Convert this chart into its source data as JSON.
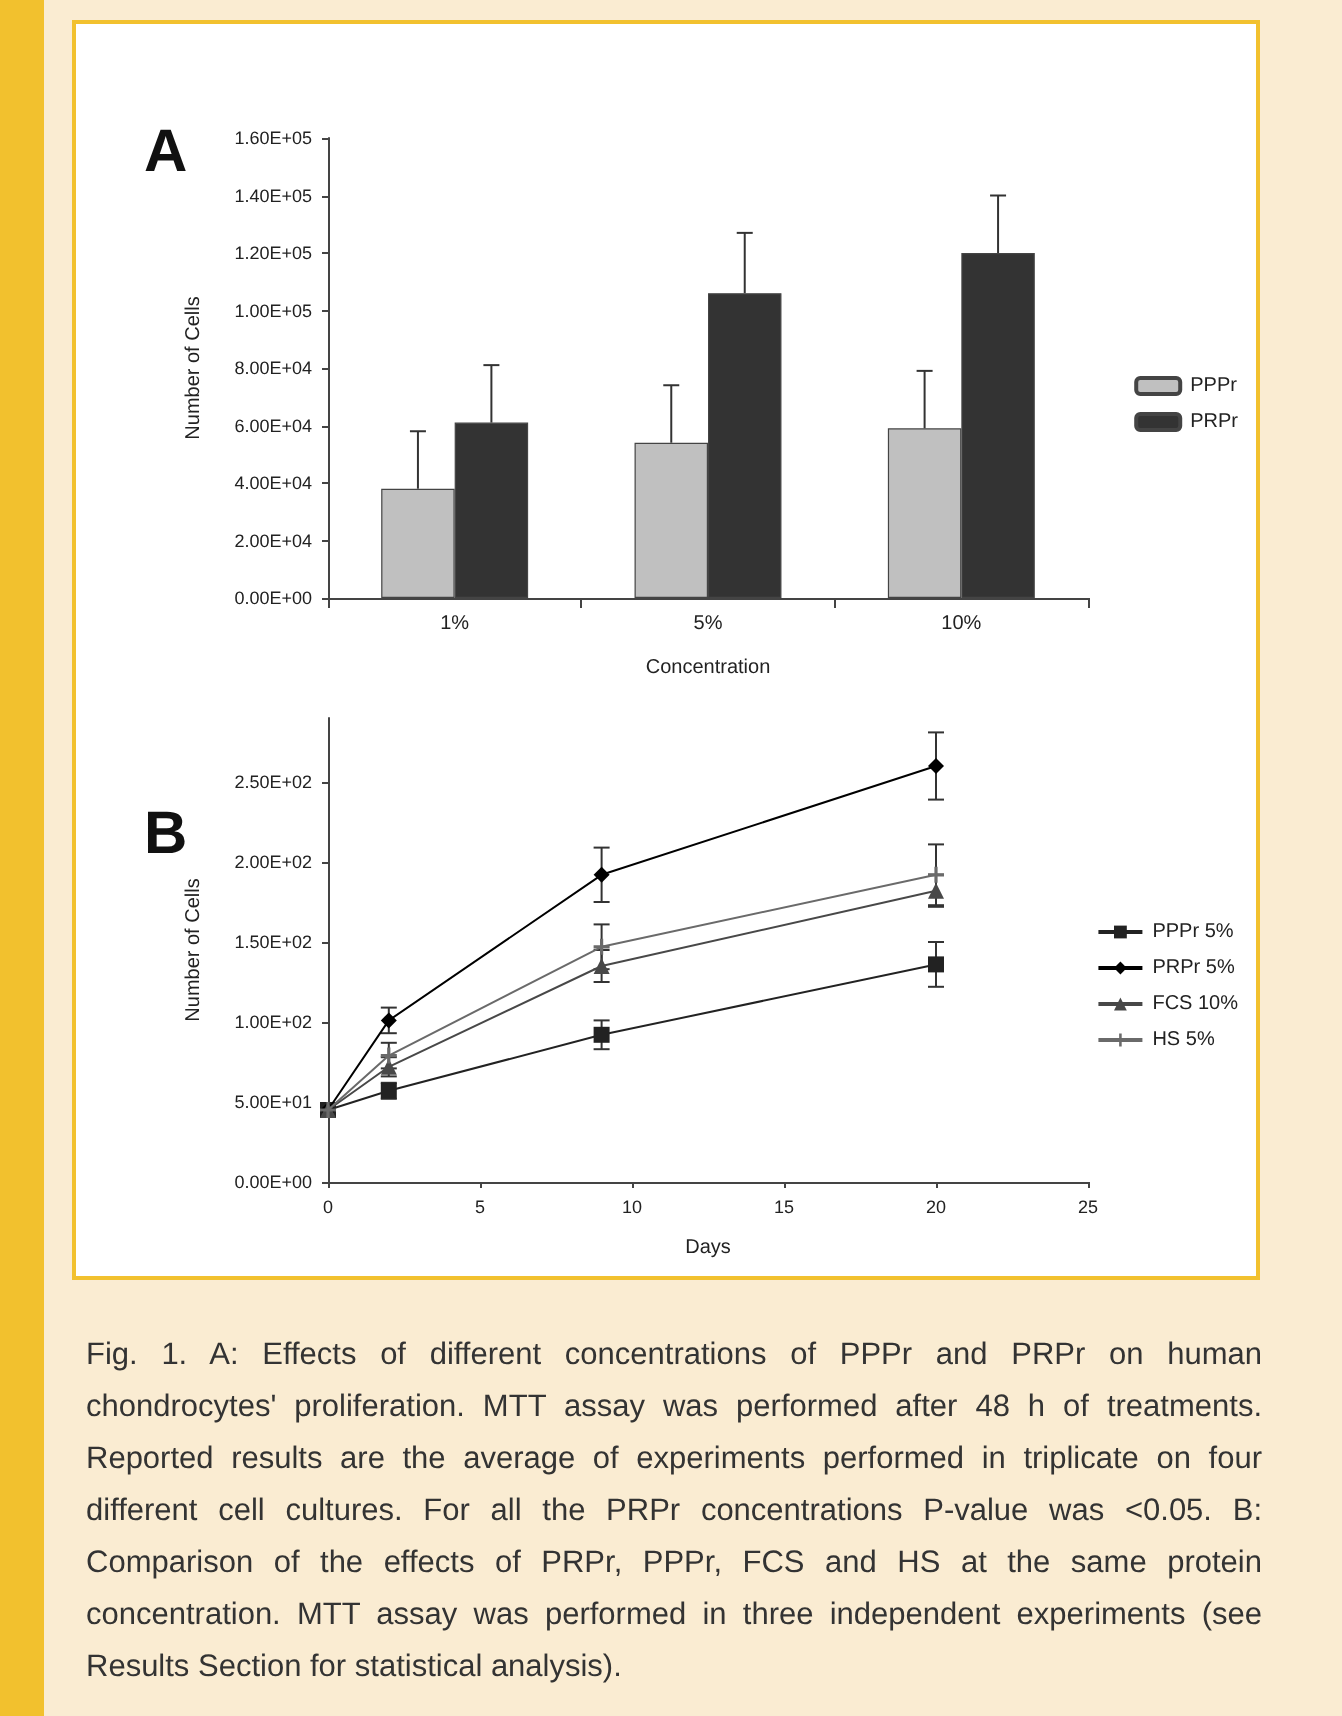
{
  "chart_data": [
    {
      "type": "bar",
      "annotations": [
        "A"
      ],
      "ylabel": "Number of Cells",
      "xlabel": "Concentration",
      "categories": [
        "1%",
        "5%",
        "10%"
      ],
      "series": [
        {
          "name": "PPPr",
          "color": "#c0c0c0",
          "values": [
            38000,
            54000,
            59000
          ],
          "errors": [
            [
              38000,
              58000
            ],
            [
              54000,
              74000
            ],
            [
              59000,
              79000
            ]
          ]
        },
        {
          "name": "PRPr",
          "color": "#333333",
          "values": [
            61000,
            106000,
            120000
          ],
          "errors": [
            [
              61000,
              81000
            ],
            [
              106000,
              127000
            ],
            [
              120000,
              140000
            ]
          ]
        }
      ],
      "ylim": [
        0,
        160000
      ],
      "yticks": [
        {
          "value": 0,
          "label": "0.00E+00"
        },
        {
          "value": 20000,
          "label": "2.00E+04"
        },
        {
          "value": 40000,
          "label": "4.00E+04"
        },
        {
          "value": 60000,
          "label": "6.00E+04"
        },
        {
          "value": 80000,
          "label": "8.00E+04"
        },
        {
          "value": 100000,
          "label": "1.00E+05"
        },
        {
          "value": 120000,
          "label": "1.20E+05"
        },
        {
          "value": 140000,
          "label": "1.40E+05"
        },
        {
          "value": 160000,
          "label": "1.60E+05"
        }
      ],
      "grid": false,
      "legend": "right"
    },
    {
      "type": "line",
      "annotations": [
        "B",
        "Fig. 1.   A: Effects of different concentrations of PPPr and PRPr on human chondrocytes' proliferation. MTT assay was performed after 48 h of treatments. Reported results are the average of experiments performed in triplicate on four different cell cultures. For all the PRPr concentrations P-value was <0.05. B: Comparison of the effects of PRPr, PPPr, FCS and HS at the same protein concentration. MTT assay was performed in three independent experiments (see Results Section for statistical analysis)."
      ],
      "ylabel": "Number of Cells",
      "xlabel": "Days",
      "x": [
        0,
        2,
        9,
        20
      ],
      "series": [
        {
          "name": "PPPr 5%",
          "color": "#222222",
          "marker": "square",
          "values": [
            45,
            57,
            92,
            136
          ],
          "errors": [
            null,
            5,
            9,
            14
          ]
        },
        {
          "name": "PRPr 5%",
          "color": "#000000",
          "marker": "diamond",
          "values": [
            45,
            101,
            192,
            260
          ],
          "errors": [
            null,
            8,
            17,
            21
          ]
        },
        {
          "name": "FCS 10%",
          "color": "#484848",
          "marker": "triangle",
          "values": [
            45,
            72,
            135,
            182
          ],
          "errors": [
            null,
            6,
            10,
            10
          ]
        },
        {
          "name": "HS 5%",
          "color": "#6a6a6a",
          "marker": "cross",
          "values": [
            45,
            79,
            147,
            192
          ],
          "errors": [
            null,
            8,
            14,
            19
          ]
        }
      ],
      "xlim": [
        0,
        25
      ],
      "xticks": [
        0,
        5,
        10,
        15,
        20,
        25
      ],
      "ylim": [
        0,
        290
      ],
      "yticks": [
        {
          "value": 0,
          "label": "0.00E+00"
        },
        {
          "value": 50,
          "label": "5.00E+01"
        },
        {
          "value": 100,
          "label": "1.00E+02"
        },
        {
          "value": 150,
          "label": "1.50E+02"
        },
        {
          "value": 200,
          "label": "2.00E+02"
        },
        {
          "value": 250,
          "label": "2.50E+02"
        }
      ],
      "grid": false,
      "legend": "right",
      "line_style": "solid"
    }
  ]
}
